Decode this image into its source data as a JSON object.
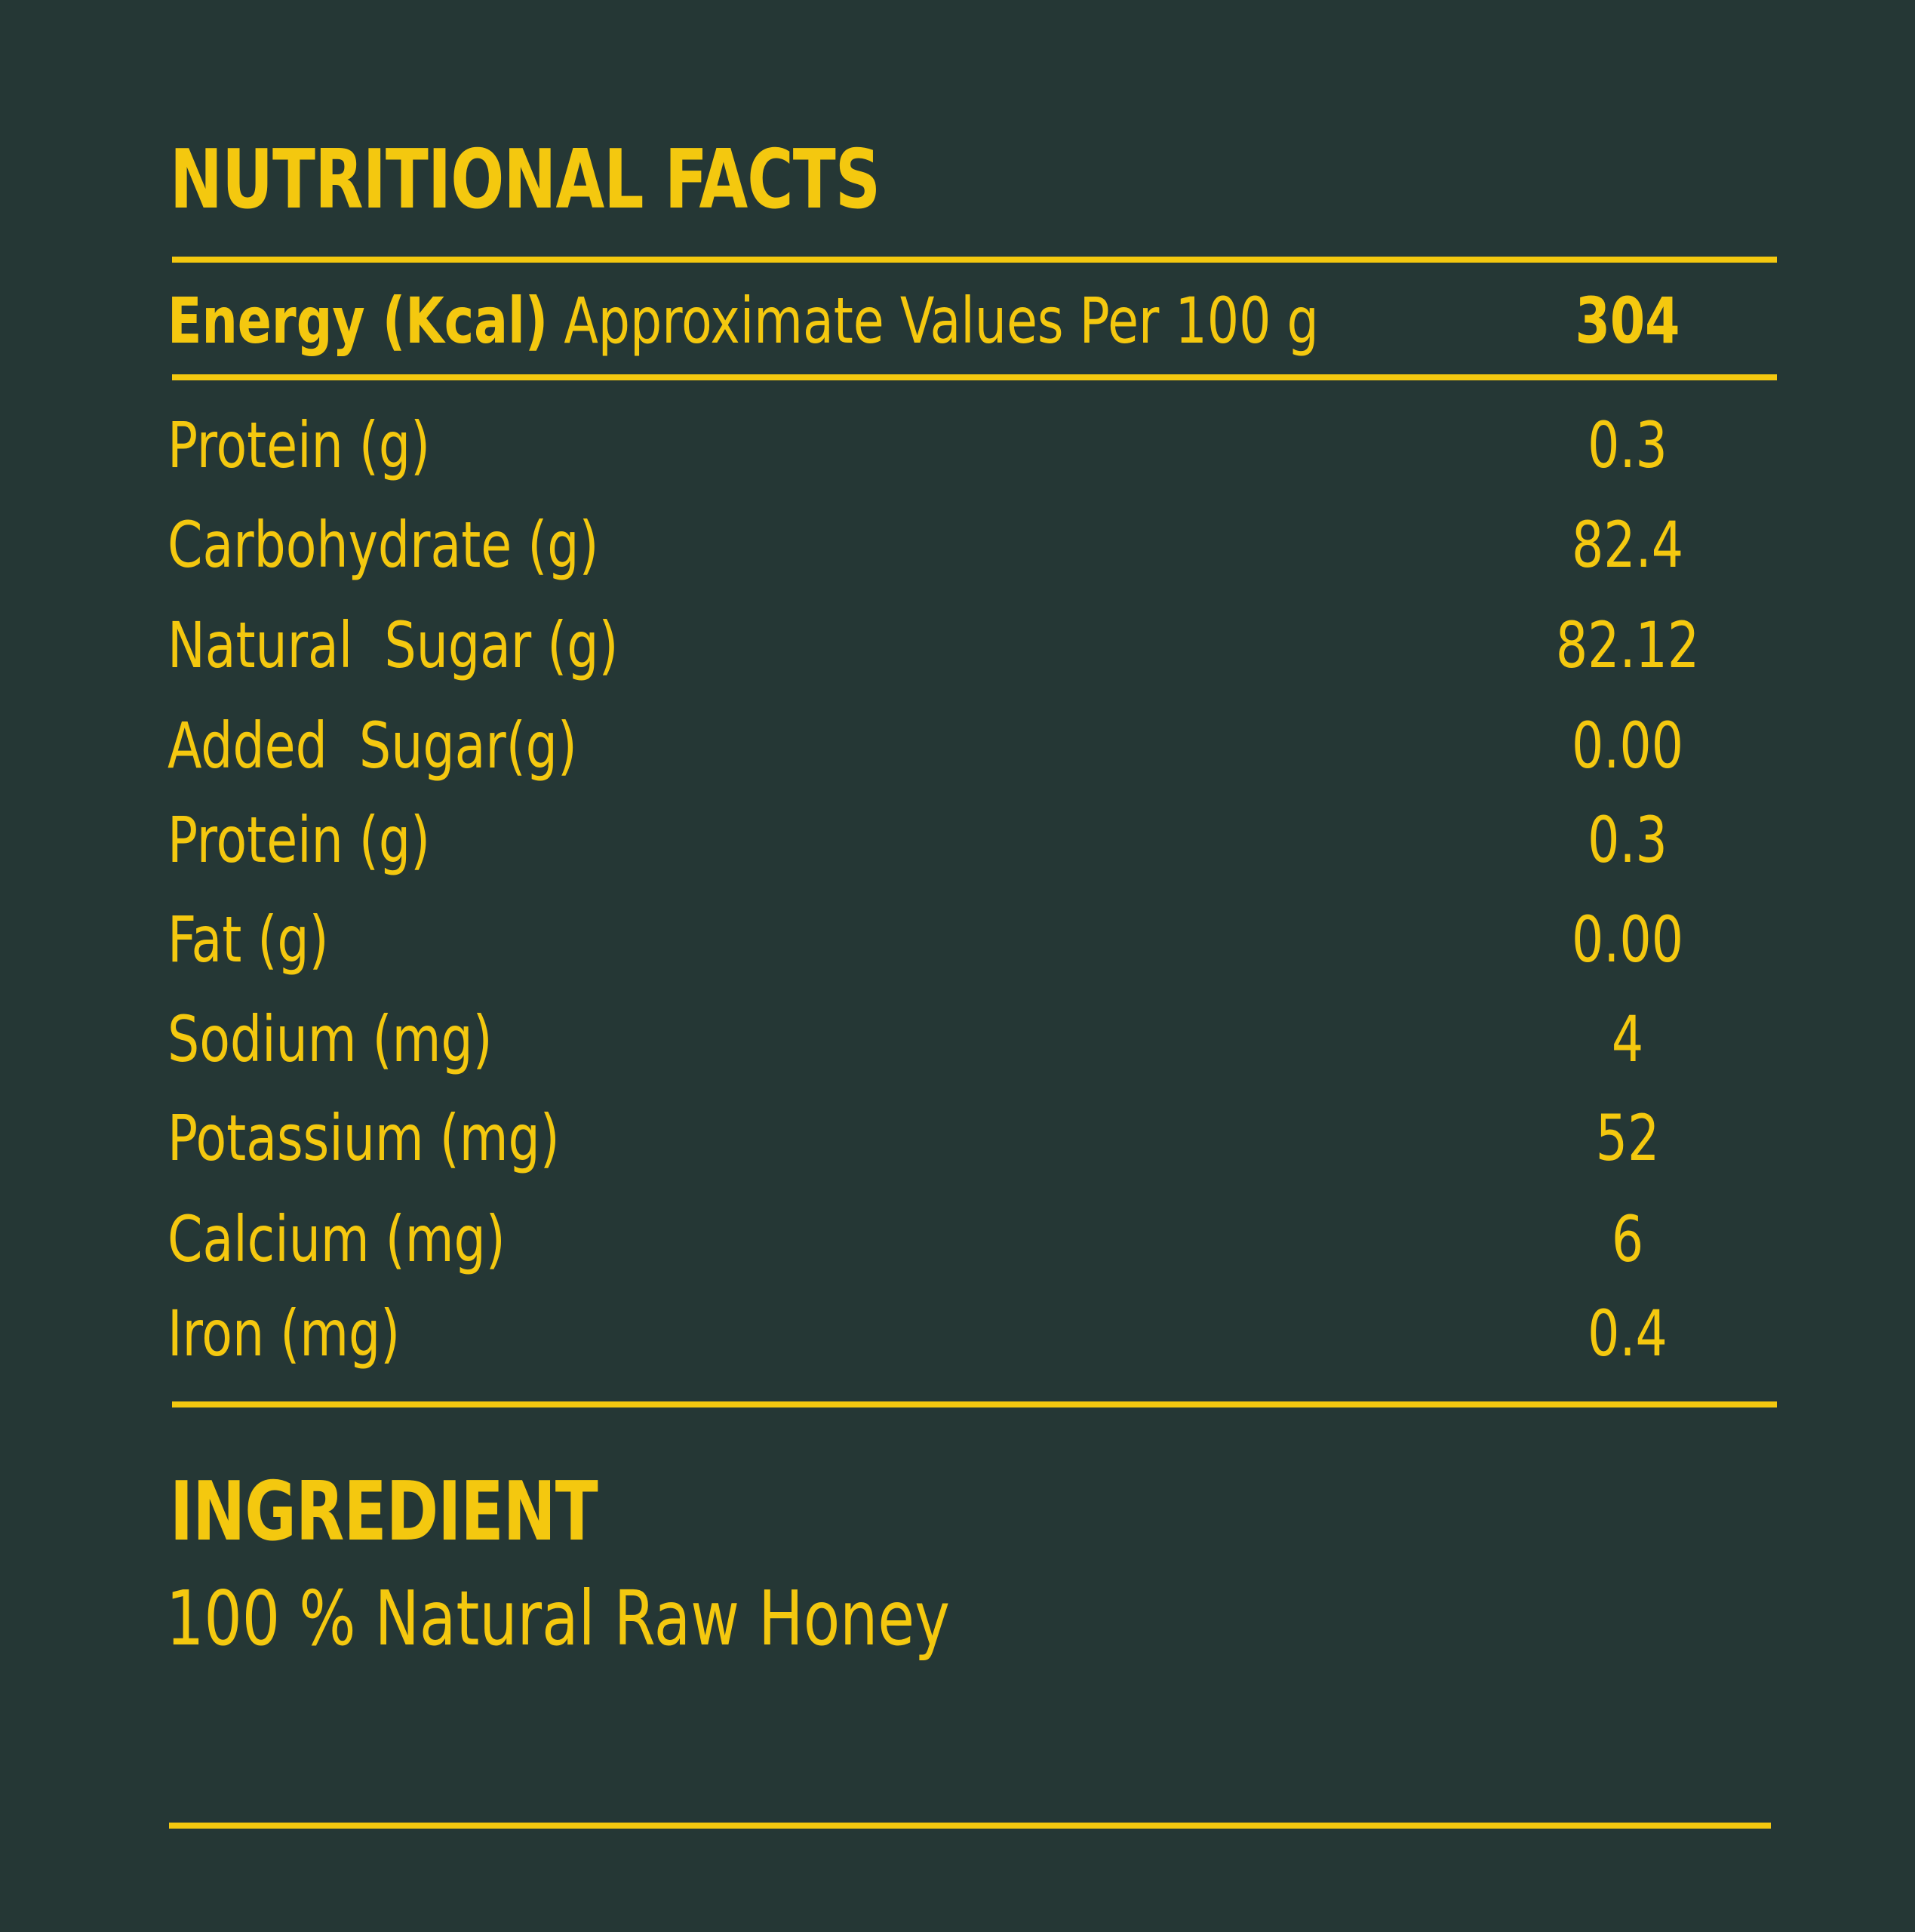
{
  "title": "NUTRITIONAL FACTS",
  "energy": {
    "label_bold": "Energy (Kcal)",
    "label_rest": " Approximate Values Per 100 g",
    "value": "304"
  },
  "nutrients": [
    {
      "label": "Protein (g)",
      "value": "0.3"
    },
    {
      "label": "Carbohydrate (g)",
      "value": "82.4"
    },
    {
      "label": "Natural  Sugar (g)",
      "value": "82.12"
    },
    {
      "label": "Added  Sugar(g)",
      "value": "0.00"
    },
    {
      "label": "Protein (g)",
      "value": "0.3"
    },
    {
      "label": "Fat (g)",
      "value": "0.00"
    },
    {
      "label": "Sodium (mg)",
      "value": "4"
    },
    {
      "label": "Potassium (mg)",
      "value": "52"
    },
    {
      "label": "Calcium (mg)",
      "value": "6"
    },
    {
      "label": "Iron (mg)",
      "value": "0.4"
    }
  ],
  "ingredient": {
    "heading": "INGREDIENT",
    "text": "100 % Natural Raw Honey"
  },
  "colors": {
    "background": "#253735",
    "accent": "#f4c80f"
  }
}
